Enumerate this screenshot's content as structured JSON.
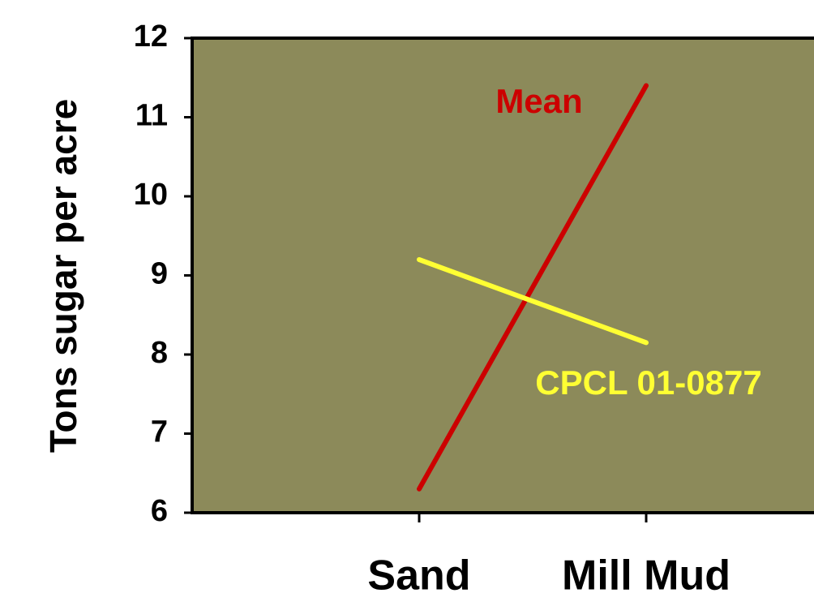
{
  "chart_data": {
    "type": "line",
    "ylabel": "Tons sugar per acre",
    "categories": [
      "Sand",
      "Mill Mud"
    ],
    "series": [
      {
        "name": "Mean",
        "color": "#cc0000",
        "values": [
          6.3,
          11.4
        ]
      },
      {
        "name": "CPCL 01-0877",
        "color": "#ffff33",
        "values": [
          9.2,
          8.15
        ]
      }
    ],
    "ylim": [
      6,
      12
    ],
    "yticks": [
      6,
      7,
      8,
      9,
      10,
      11,
      12
    ],
    "plot_background": "#8c8a5a"
  }
}
